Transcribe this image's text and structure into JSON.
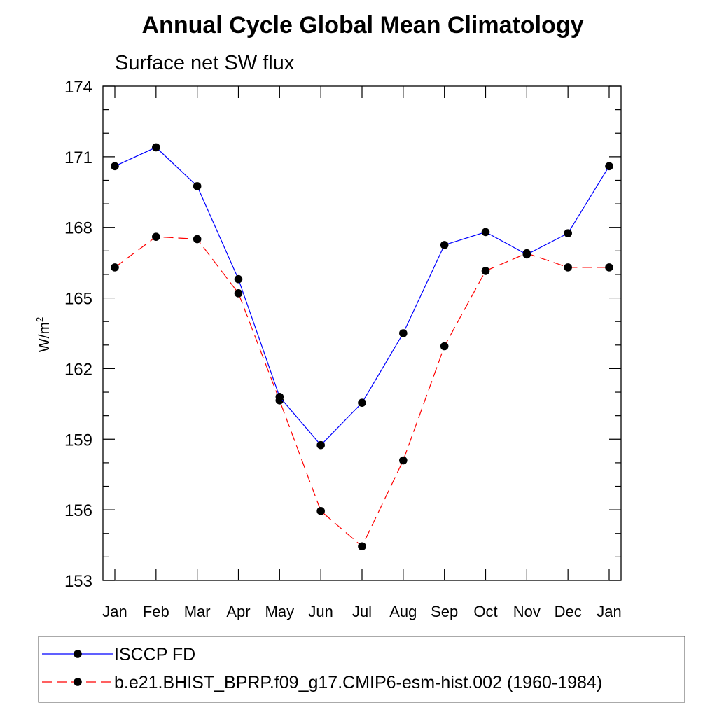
{
  "chart_data": {
    "type": "line",
    "title": "Annual Cycle Global Mean Climatology",
    "subtitle": "Surface net SW flux",
    "ylabel": "W/m",
    "ylabel_superscript": "2",
    "xlabel": "",
    "categories": [
      "Jan",
      "Feb",
      "Mar",
      "Apr",
      "May",
      "Jun",
      "Jul",
      "Aug",
      "Sep",
      "Oct",
      "Nov",
      "Dec",
      "Jan"
    ],
    "ylim": [
      153,
      174
    ],
    "yticks": [
      153,
      156,
      159,
      162,
      165,
      168,
      171,
      174
    ],
    "grid": false,
    "legend_position": "bottom",
    "series": [
      {
        "name": "ISCCP FD",
        "color": "#0000ff",
        "dash": "solid",
        "marker": "filled-circle",
        "values": [
          170.6,
          171.4,
          169.75,
          165.8,
          160.8,
          158.75,
          160.55,
          163.5,
          167.25,
          167.8,
          166.85,
          167.75,
          170.6
        ]
      },
      {
        "name": "b.e21.BHIST_BPRP.f09_g17.CMIP6-esm-hist.002 (1960-1984)",
        "color": "#ff0000",
        "dash": "dashed",
        "marker": "filled-circle",
        "values": [
          166.3,
          167.6,
          167.5,
          165.2,
          160.65,
          155.95,
          154.45,
          158.1,
          162.95,
          166.15,
          166.9,
          166.3,
          166.3
        ]
      }
    ]
  }
}
